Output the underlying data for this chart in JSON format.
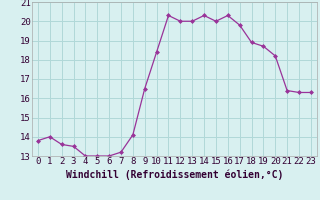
{
  "x": [
    0,
    1,
    2,
    3,
    4,
    5,
    6,
    7,
    8,
    9,
    10,
    11,
    12,
    13,
    14,
    15,
    16,
    17,
    18,
    19,
    20,
    21,
    22,
    23
  ],
  "y": [
    13.8,
    14.0,
    13.6,
    13.5,
    13.0,
    13.0,
    13.0,
    13.2,
    14.1,
    16.5,
    18.4,
    20.3,
    20.0,
    20.0,
    20.3,
    20.0,
    20.3,
    19.8,
    18.9,
    18.7,
    18.2,
    16.4,
    16.3,
    16.3
  ],
  "line_color": "#993399",
  "marker": "D",
  "marker_size": 2.0,
  "bg_color": "#d8f0f0",
  "grid_color": "#b0d8d8",
  "xlabel": "Windchill (Refroidissement éolien,°C)",
  "xlabel_fontsize": 7,
  "tick_fontsize": 6.5,
  "ylim": [
    13,
    21
  ],
  "xlim": [
    -0.5,
    23.5
  ],
  "yticks": [
    13,
    14,
    15,
    16,
    17,
    18,
    19,
    20,
    21
  ],
  "xticks": [
    0,
    1,
    2,
    3,
    4,
    5,
    6,
    7,
    8,
    9,
    10,
    11,
    12,
    13,
    14,
    15,
    16,
    17,
    18,
    19,
    20,
    21,
    22,
    23
  ]
}
